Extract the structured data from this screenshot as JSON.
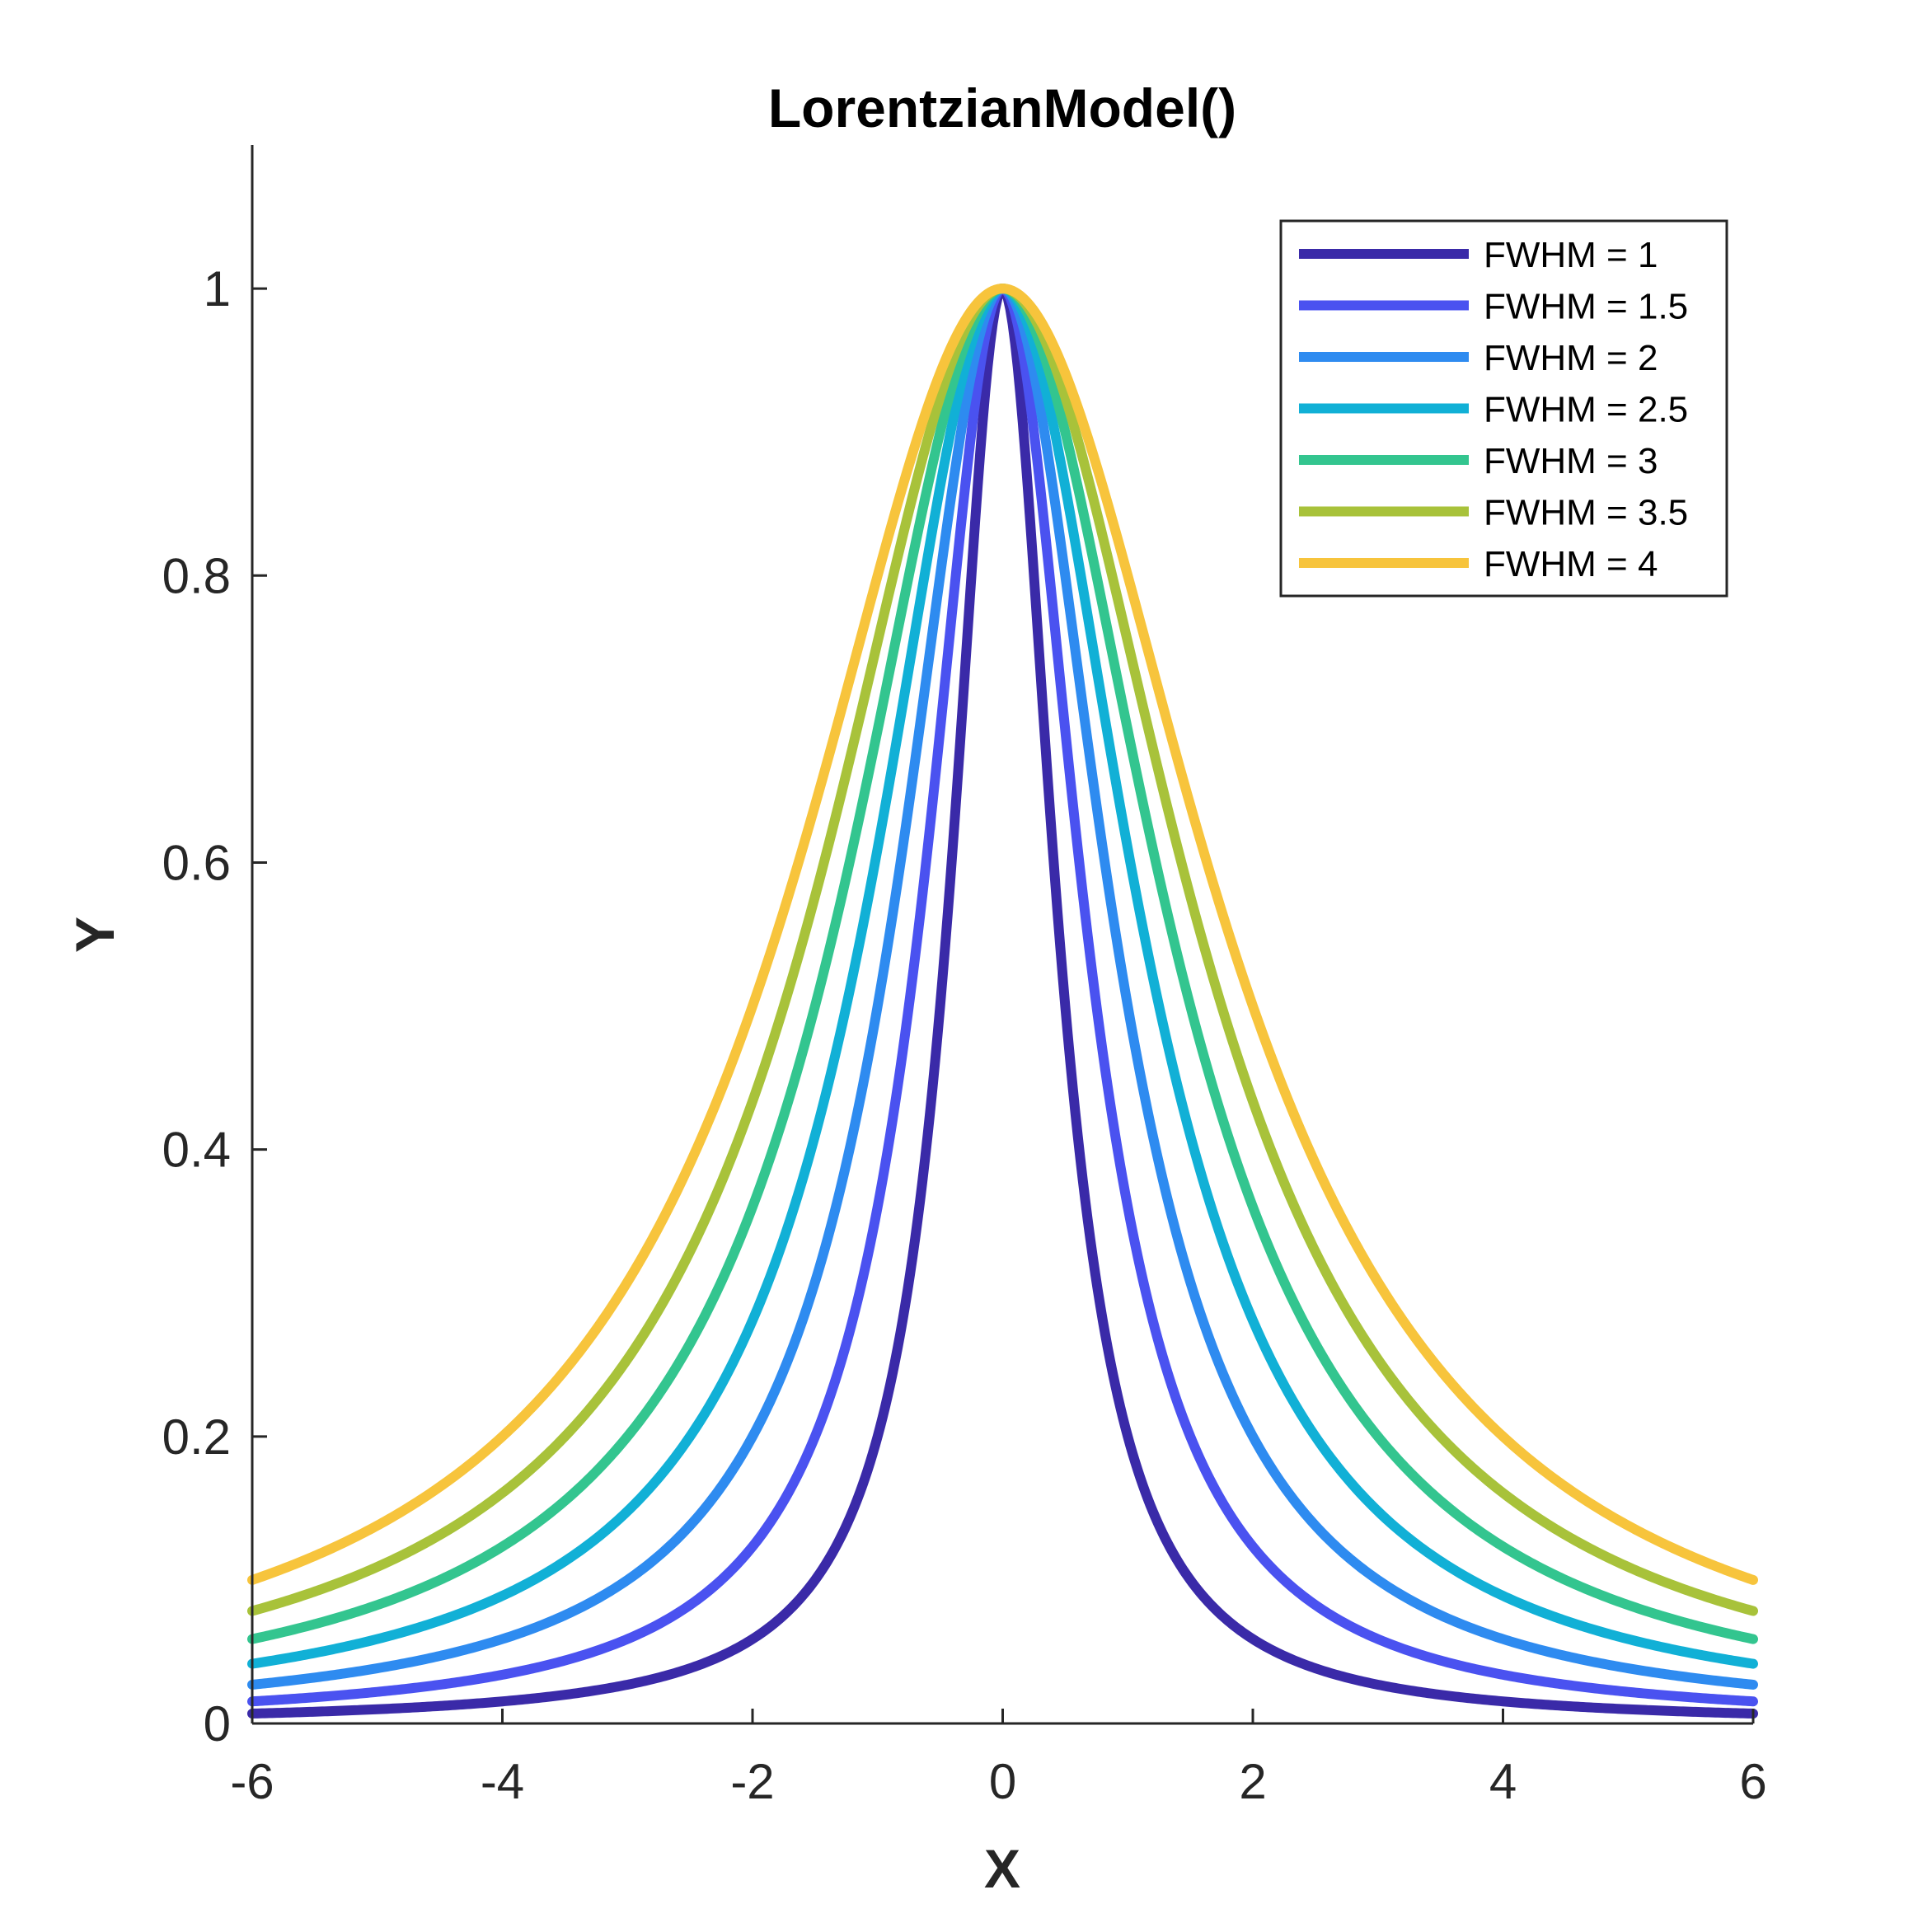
{
  "chart_data": {
    "type": "line",
    "title": "LorentzianModel()",
    "xlabel": "X",
    "ylabel": "Y",
    "xlim": [
      -6,
      6
    ],
    "ylim": [
      0,
      1.1
    ],
    "xticks": [
      -6,
      -4,
      -2,
      0,
      2,
      4,
      6
    ],
    "xtick_labels": [
      "-6",
      "-4",
      "-2",
      "0",
      "2",
      "4",
      "6"
    ],
    "yticks": [
      0,
      0.2,
      0.4,
      0.6,
      0.8,
      1
    ],
    "ytick_labels": [
      "0",
      "0.2",
      "0.4",
      "0.6",
      "0.8",
      "1"
    ],
    "grid": false,
    "legend_position": "top-right",
    "function": "y = 1 / (1 + (2x / FWHM)^2)",
    "x_sample": [
      -6,
      -5,
      -4,
      -3,
      -2,
      -1,
      0,
      1,
      2,
      3,
      4,
      5,
      6
    ],
    "series": [
      {
        "name": "FWHM = 1",
        "fwhm": 1,
        "color": "#3a2aa8",
        "values": [
          0.007,
          0.01,
          0.015,
          0.027,
          0.059,
          0.2,
          1,
          0.2,
          0.059,
          0.027,
          0.015,
          0.01,
          0.007
        ]
      },
      {
        "name": "FWHM = 1.5",
        "fwhm": 1.5,
        "color": "#4a52f0",
        "values": [
          0.015,
          0.022,
          0.034,
          0.059,
          0.123,
          0.36,
          1,
          0.36,
          0.123,
          0.059,
          0.034,
          0.022,
          0.015
        ]
      },
      {
        "name": "FWHM = 2",
        "fwhm": 2,
        "color": "#2e8bf0",
        "values": [
          0.027,
          0.038,
          0.059,
          0.1,
          0.2,
          0.5,
          1,
          0.5,
          0.2,
          0.1,
          0.059,
          0.038,
          0.027
        ]
      },
      {
        "name": "FWHM = 2.5",
        "fwhm": 2.5,
        "color": "#11b0d6",
        "values": [
          0.042,
          0.059,
          0.089,
          0.148,
          0.281,
          0.61,
          1,
          0.61,
          0.281,
          0.148,
          0.089,
          0.059,
          0.042
        ]
      },
      {
        "name": "FWHM = 3",
        "fwhm": 3,
        "color": "#33c58f",
        "values": [
          0.059,
          0.083,
          0.123,
          0.2,
          0.36,
          0.692,
          1,
          0.692,
          0.36,
          0.2,
          0.123,
          0.083,
          0.059
        ]
      },
      {
        "name": "FWHM = 3.5",
        "fwhm": 3.5,
        "color": "#a8c23a",
        "values": [
          0.078,
          0.109,
          0.161,
          0.254,
          0.434,
          0.754,
          1,
          0.754,
          0.434,
          0.254,
          0.161,
          0.109,
          0.078
        ]
      },
      {
        "name": "FWHM = 4",
        "fwhm": 4,
        "color": "#f7c43c",
        "values": [
          0.1,
          0.138,
          0.2,
          0.308,
          0.5,
          0.8,
          1,
          0.8,
          0.5,
          0.308,
          0.2,
          0.138,
          0.1
        ]
      }
    ]
  }
}
